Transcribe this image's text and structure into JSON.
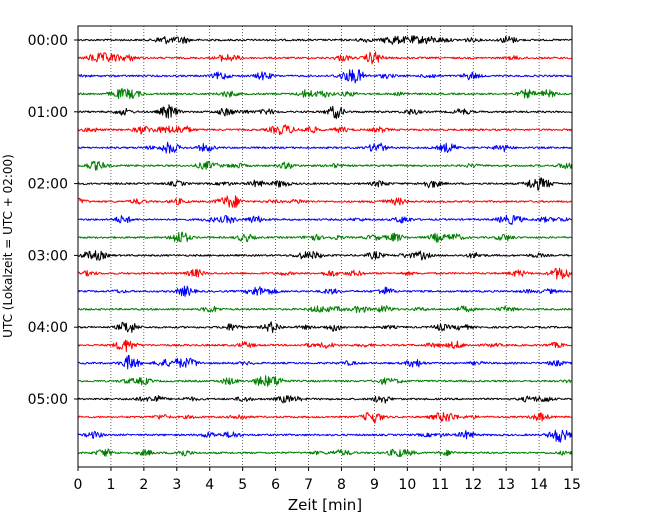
{
  "chart_data": {
    "type": "line",
    "title": "",
    "xlabel": "Zeit  [min]",
    "ylabel": "UTC (Lokalzeit = UTC + 02:00)",
    "xlim": [
      0,
      15
    ],
    "x_ticks": [
      "0",
      "1",
      "2",
      "3",
      "4",
      "5",
      "6",
      "7",
      "8",
      "9",
      "10",
      "11",
      "12",
      "13",
      "14",
      "15"
    ],
    "y_ticks": [
      "00:00",
      "01:00",
      "02:00",
      "03:00",
      "04:00",
      "05:00"
    ],
    "trace_interval_min": 15,
    "trace_count": 24,
    "trace_start": "00:00",
    "trace_end": "05:45",
    "trace_color_cycle": [
      "#000000",
      "#ff0000",
      "#0000ff",
      "#008000"
    ],
    "grid": "vertical dotted at each minute",
    "legend": "none"
  }
}
